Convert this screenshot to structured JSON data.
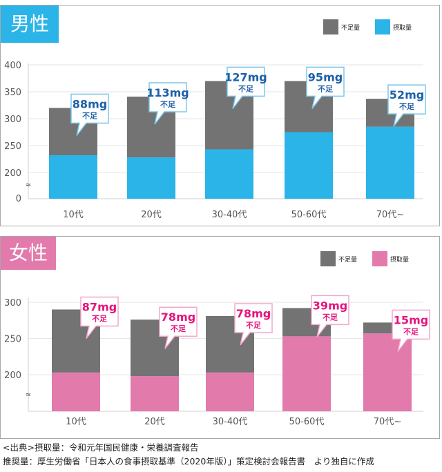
{
  "colors": {
    "deficit": "#737373",
    "male_intake": "#2ab4e8",
    "female_intake": "#e27aac",
    "male_label": "#1e5fa8",
    "female_label": "#e5137e",
    "male_tag": "#2ab4e8",
    "female_tag": "#e27aac"
  },
  "chart_data": [
    {
      "type": "bar",
      "stacked": true,
      "title": "男性",
      "categories": [
        "10代",
        "20代",
        "30-40代",
        "50-60代",
        "70代~"
      ],
      "series": [
        {
          "name": "摂取量",
          "values": [
            232,
            228,
            243,
            275,
            285
          ]
        },
        {
          "name": "不足量",
          "values": [
            88,
            113,
            127,
            95,
            52
          ]
        }
      ],
      "annotations": [
        {
          "value": "88mg",
          "sub": "不足"
        },
        {
          "value": "113mg",
          "sub": "不足"
        },
        {
          "value": "127mg",
          "sub": "不足"
        },
        {
          "value": "95mg",
          "sub": "不足"
        },
        {
          "value": "52mg",
          "sub": "不足"
        }
      ],
      "legend": [
        "不足量",
        "摂取量"
      ],
      "legend_position": "top-right",
      "yticks": [
        "400",
        "350",
        "300",
        "250",
        "200",
        "0"
      ],
      "ytick_values": [
        400,
        350,
        300,
        250,
        200
      ],
      "ylim": [
        150,
        400
      ],
      "axis_break": "≈",
      "grid": true,
      "xlabel": "",
      "ylabel": ""
    },
    {
      "type": "bar",
      "stacked": true,
      "title": "女性",
      "categories": [
        "10代",
        "20代",
        "30-40代",
        "50-60代",
        "70代~"
      ],
      "series": [
        {
          "name": "摂取量",
          "values": [
            203,
            198,
            203,
            253,
            257
          ]
        },
        {
          "name": "不足量",
          "values": [
            87,
            78,
            78,
            39,
            15
          ]
        }
      ],
      "annotations": [
        {
          "value": "87mg",
          "sub": "不足"
        },
        {
          "value": "78mg",
          "sub": "不足"
        },
        {
          "value": "78mg",
          "sub": "不足"
        },
        {
          "value": "39mg",
          "sub": "不足"
        },
        {
          "value": "15mg",
          "sub": "不足"
        }
      ],
      "legend": [
        "不足量",
        "摂取量"
      ],
      "legend_position": "top-right",
      "yticks": [
        "300",
        "250",
        "200"
      ],
      "ytick_values": [
        300,
        250,
        200
      ],
      "ylim": [
        150,
        300
      ],
      "axis_break": "≈",
      "grid": true,
      "xlabel": "",
      "ylabel": ""
    }
  ],
  "source": {
    "line1": "<出典>摂取量：令和元年国民健康・栄養調査報告",
    "line2": "推奨量：厚生労働省「日本人の食事摂取基準（2020年版）」策定検討会報告書　より独自に作成"
  }
}
